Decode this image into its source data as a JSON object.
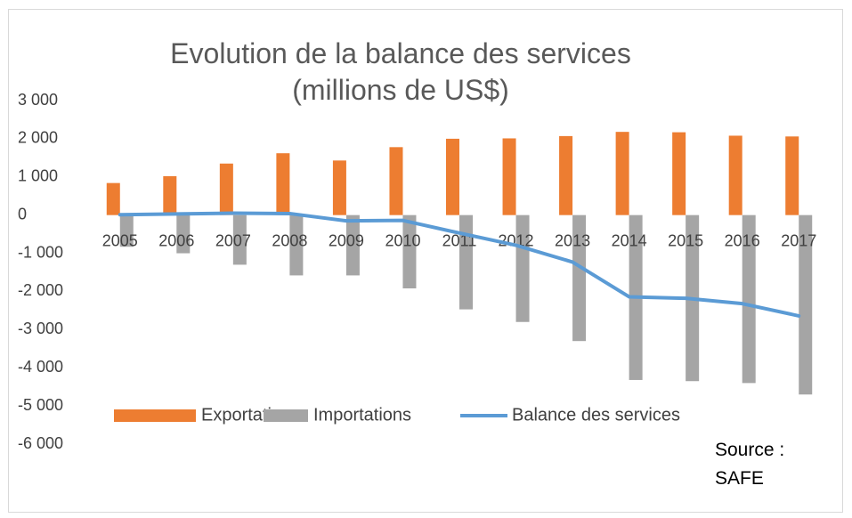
{
  "chart_data": {
    "type": "bar",
    "title": "Evolution de la balance des services (millions de US$)",
    "annotation": "Source : SAFE",
    "categories": [
      "2005",
      "2006",
      "2007",
      "2008",
      "2009",
      "2010",
      "2011",
      "2012",
      "2013",
      "2014",
      "2015",
      "2016",
      "2017"
    ],
    "series": [
      {
        "name": "Exportations",
        "type": "bar",
        "color": "#ED7D31",
        "values": [
          840,
          1020,
          1350,
          1620,
          1430,
          1780,
          2000,
          2010,
          2070,
          2180,
          2170,
          2080,
          2060
        ]
      },
      {
        "name": "Importations",
        "type": "bar",
        "color": "#A5A5A5",
        "values": [
          -830,
          -1000,
          -1300,
          -1580,
          -1580,
          -1920,
          -2470,
          -2800,
          -3300,
          -4320,
          -4350,
          -4400,
          -4700
        ]
      },
      {
        "name": "Balance des services",
        "type": "line",
        "color": "#5B9BD5",
        "values": [
          10,
          30,
          50,
          40,
          -150,
          -140,
          -470,
          -790,
          -1230,
          -2140,
          -2180,
          -2320,
          -2640
        ]
      }
    ],
    "ylim": [
      -6000,
      3000
    ],
    "yticks": [
      {
        "value": -6000,
        "label": "-6 000"
      },
      {
        "value": -5000,
        "label": "-5 000"
      },
      {
        "value": -4000,
        "label": "-4 000"
      },
      {
        "value": -3000,
        "label": "-3 000"
      },
      {
        "value": -2000,
        "label": "-2 000"
      },
      {
        "value": -1000,
        "label": "-1 000"
      },
      0,
      {
        "value": 1000,
        "label": "1 000"
      },
      {
        "value": 2000,
        "label": "2 000"
      },
      {
        "value": 3000,
        "label": "3 000"
      }
    ]
  }
}
